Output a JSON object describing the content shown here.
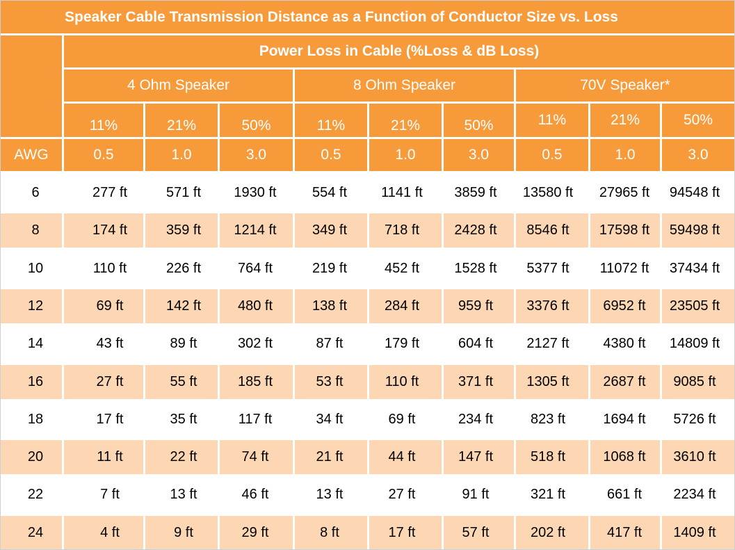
{
  "title": "Speaker Cable Transmission Distance as a Function of Conductor Size vs. Loss",
  "section_header": "Power Loss in Cable (%Loss & dB Loss)",
  "groups": [
    "4 Ohm Speaker",
    "8 Ohm Speaker",
    "70V Speaker*"
  ],
  "percent_labels": [
    "11%",
    "21%",
    "50%",
    "11%",
    "21%",
    "50%",
    "11%",
    "21%",
    "50%"
  ],
  "db_labels": [
    "0.5",
    "1.0",
    "3.0",
    "0.5",
    "1.0",
    "3.0",
    "0.5",
    "1.0",
    "3.0"
  ],
  "awg_label": "AWG",
  "rows": [
    {
      "awg": "6",
      "cells": [
        "277 ft",
        "571 ft",
        "1930 ft",
        "554 ft",
        "1141 ft",
        "3859 ft",
        "13580 ft",
        "27965 ft",
        "94548 ft"
      ]
    },
    {
      "awg": "8",
      "cells": [
        "174 ft",
        "359 ft",
        "1214 ft",
        "349 ft",
        "718 ft",
        "2428 ft",
        "8546 ft",
        "17598 ft",
        "59498 ft"
      ]
    },
    {
      "awg": "10",
      "cells": [
        "110 ft",
        "226 ft",
        "764 ft",
        "219 ft",
        "452 ft",
        "1528 ft",
        "5377 ft",
        "11072 ft",
        "37434 ft"
      ]
    },
    {
      "awg": "12",
      "cells": [
        "69 ft",
        "142 ft",
        "480 ft",
        "138 ft",
        "284 ft",
        "959 ft",
        "3376 ft",
        "6952 ft",
        "23505 ft"
      ]
    },
    {
      "awg": "14",
      "cells": [
        "43 ft",
        "89 ft",
        "302 ft",
        "87 ft",
        "179 ft",
        "604 ft",
        "2127 ft",
        "4380 ft",
        "14809 ft"
      ]
    },
    {
      "awg": "16",
      "cells": [
        "27 ft",
        "55 ft",
        "185 ft",
        "53 ft",
        "110 ft",
        "371 ft",
        "1305 ft",
        "2687 ft",
        "9085 ft"
      ]
    },
    {
      "awg": "18",
      "cells": [
        "17 ft",
        "35 ft",
        "117 ft",
        "34 ft",
        "69 ft",
        "234 ft",
        "823 ft",
        "1694 ft",
        "5726 ft"
      ]
    },
    {
      "awg": "20",
      "cells": [
        "11 ft",
        "22 ft",
        "74 ft",
        "21 ft",
        "44 ft",
        "147 ft",
        "518 ft",
        "1068 ft",
        "3610 ft"
      ]
    },
    {
      "awg": "22",
      "cells": [
        "7 ft",
        "13 ft",
        "46 ft",
        "13 ft",
        "27 ft",
        "91 ft",
        "321 ft",
        "661 ft",
        "2234 ft"
      ]
    },
    {
      "awg": "24",
      "cells": [
        "4 ft",
        "9 ft",
        "29 ft",
        "8 ft",
        "17 ft",
        "57 ft",
        "202 ft",
        "417 ft",
        "1409 ft"
      ]
    }
  ],
  "colors": {
    "header_orange": "#f79a3a",
    "stripe_peach": "#fdd6b3",
    "header_text": "#ffffff",
    "body_text": "#000000"
  }
}
